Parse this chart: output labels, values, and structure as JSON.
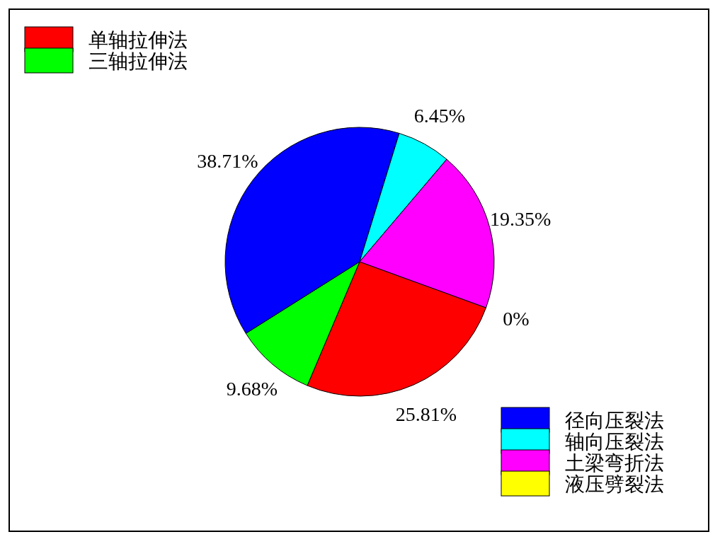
{
  "chart_data": {
    "type": "pie",
    "categories": [
      "单轴拉伸法",
      "三轴拉伸法",
      "径向压裂法",
      "轴向压裂法",
      "土梁弯折法",
      "液压劈裂法"
    ],
    "values": [
      25.81,
      9.68,
      38.71,
      6.45,
      19.35,
      0
    ],
    "colors": [
      "#ff0000",
      "#00ff00",
      "#0000ff",
      "#00ffff",
      "#ff00ff",
      "#ffff00"
    ],
    "value_labels": [
      "25.81%",
      "9.68%",
      "38.71%",
      "6.45%",
      "19.35%",
      "0%"
    ],
    "legend": "top left"
  }
}
